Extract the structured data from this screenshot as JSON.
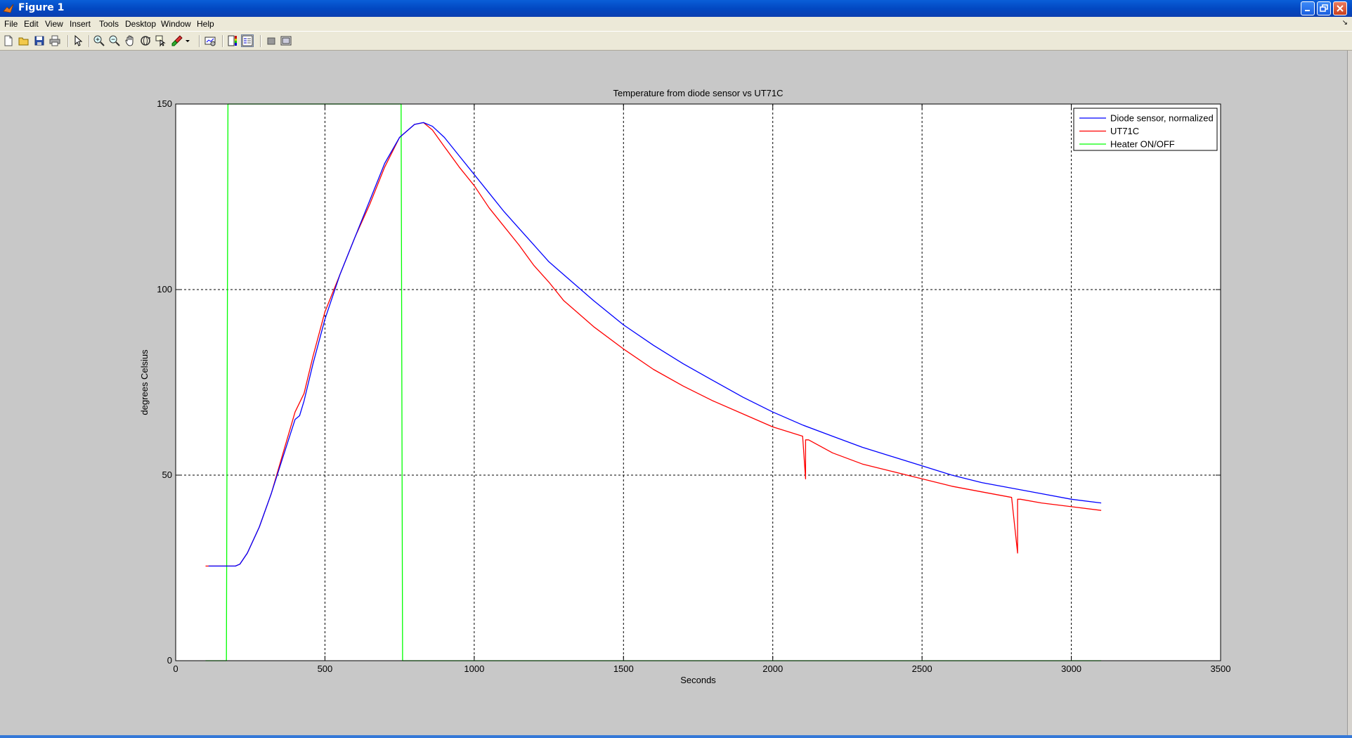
{
  "window": {
    "title": "Figure 1",
    "menu": [
      "File",
      "Edit",
      "View",
      "Insert",
      "Tools",
      "Desktop",
      "Window",
      "Help"
    ],
    "toolbar_icons": [
      "new-figure-icon",
      "open-file-icon",
      "save-icon",
      "print-icon",
      "pointer-icon",
      "zoom-in-icon",
      "zoom-out-icon",
      "pan-icon",
      "rotate-3d-icon",
      "data-cursor-icon",
      "brush-icon",
      "brush-dropdown-icon",
      "link-plot-icon",
      "colorbar-icon",
      "legend-icon",
      "hide-plot-tools-icon",
      "show-plot-tools-icon"
    ]
  },
  "chart_data": {
    "type": "line",
    "title": "Temperature from diode sensor vs UT71C",
    "xlabel": "Seconds",
    "ylabel": "degrees Celsius",
    "xlim": [
      0,
      3500
    ],
    "ylim": [
      0,
      150
    ],
    "xticks": [
      0,
      500,
      1000,
      1500,
      2000,
      2500,
      3000,
      3500
    ],
    "yticks": [
      0,
      50,
      100,
      150
    ],
    "grid": true,
    "legend_position": "top-right",
    "series": [
      {
        "name": "Diode sensor, normalized",
        "color": "#0000ff",
        "x": [
          110,
          200,
          215,
          240,
          280,
          320,
          360,
          400,
          415,
          430,
          460,
          500,
          550,
          600,
          650,
          700,
          750,
          800,
          830,
          860,
          900,
          950,
          1000,
          1050,
          1100,
          1150,
          1200,
          1250,
          1300,
          1350,
          1400,
          1500,
          1600,
          1700,
          1800,
          1900,
          2000,
          2100,
          2200,
          2300,
          2400,
          2500,
          2600,
          2700,
          2800,
          2900,
          3000,
          3100
        ],
        "y": [
          25.5,
          25.5,
          26,
          29,
          36,
          45,
          55,
          65,
          66,
          70,
          80,
          92,
          104,
          114,
          124,
          134,
          141,
          144.5,
          145,
          144,
          141,
          136,
          131,
          126,
          121,
          116.5,
          112,
          107.5,
          104,
          100.5,
          97,
          90.5,
          85,
          80,
          75.5,
          71,
          67,
          63.5,
          60.5,
          57.5,
          55,
          52.5,
          50,
          48,
          46.5,
          45,
          43.5,
          42.5
        ]
      },
      {
        "name": "UT71C",
        "color": "#ff0000",
        "x": [
          100,
          200,
          215,
          240,
          280,
          320,
          360,
          400,
          430,
          460,
          500,
          550,
          600,
          650,
          700,
          750,
          800,
          830,
          860,
          900,
          950,
          1000,
          1050,
          1100,
          1150,
          1200,
          1250,
          1300,
          1350,
          1400,
          1500,
          1600,
          1700,
          1800,
          1900,
          2000,
          2100,
          2110,
          2110,
          2120,
          2200,
          2300,
          2400,
          2500,
          2600,
          2700,
          2800,
          2820,
          2820,
          2830,
          2900,
          3000,
          3100
        ],
        "y": [
          25.5,
          25.5,
          26,
          29,
          36,
          45,
          56,
          67,
          72,
          82,
          94,
          104,
          114,
          123,
          133,
          141,
          144.5,
          145,
          143,
          138.5,
          133,
          128,
          122,
          117,
          112,
          106.5,
          102,
          97,
          93.5,
          90,
          84,
          78.5,
          74,
          70,
          66.5,
          63,
          60.5,
          49,
          59.5,
          59.5,
          56,
          53,
          51,
          49,
          47,
          45.5,
          44,
          29,
          43.5,
          43.5,
          42.5,
          41.5,
          40.5
        ]
      },
      {
        "name": "Heater ON/OFF",
        "color": "#00ff00",
        "x": [
          100,
          170,
          175,
          755,
          760,
          3100
        ],
        "y": [
          0,
          0,
          150,
          150,
          0,
          0
        ]
      }
    ]
  }
}
